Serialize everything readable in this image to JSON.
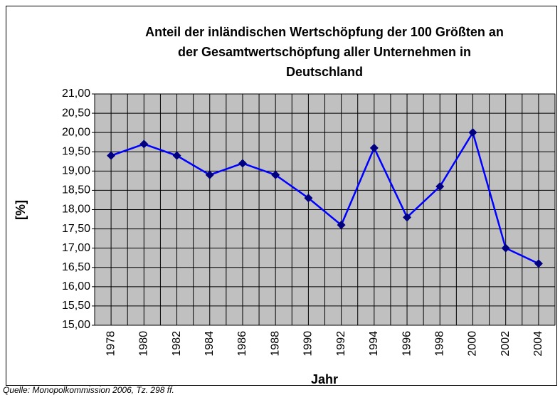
{
  "chart_data": {
    "type": "line",
    "title": [
      "Anteil der inländischen Wertschöpfung der 100 Größten an",
      "der Gesamtwertschöpfung aller Unternehmen in",
      "Deutschland"
    ],
    "y_label": "[%]",
    "x_label": "Jahr",
    "source": "Quelle: Monopolkommission 2006, Tz. 298 ff.",
    "categories": [
      "1978",
      "1980",
      "1982",
      "1984",
      "1986",
      "1988",
      "1990",
      "1992",
      "1994",
      "1996",
      "1998",
      "2000",
      "2002",
      "2004"
    ],
    "series": [
      {
        "color": "#0000ff",
        "marker_color": "#000080",
        "values": [
          19.4,
          19.7,
          19.4,
          18.9,
          19.2,
          18.9,
          18.3,
          17.6,
          19.6,
          17.8,
          18.6,
          20.0,
          17.0,
          16.6
        ]
      }
    ],
    "ylim": [
      15,
      21
    ],
    "yticks": [
      {
        "value": 15,
        "label": "15,00"
      },
      {
        "value": 15.5,
        "label": "15,50"
      },
      {
        "value": 16,
        "label": "16,00"
      },
      {
        "value": 16.5,
        "label": "16,50"
      },
      {
        "value": 17,
        "label": "17,00"
      },
      {
        "value": 17.5,
        "label": "17,50"
      },
      {
        "value": 18,
        "label": "18,00"
      },
      {
        "value": 18.5,
        "label": "18,50"
      },
      {
        "value": 19,
        "label": "19,00"
      },
      {
        "value": 19.5,
        "label": "19,50"
      },
      {
        "value": 20,
        "label": "20,00"
      },
      {
        "value": 20.5,
        "label": "20,50"
      },
      {
        "value": 21,
        "label": "21,00"
      }
    ],
    "grid": true,
    "plot_background": "#c0c0c0"
  }
}
